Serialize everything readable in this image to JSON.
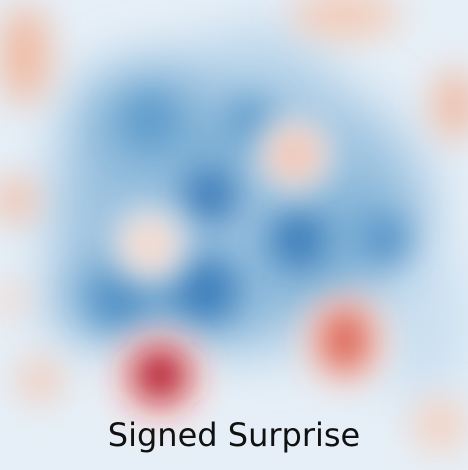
{
  "caption": "Signed Surprise"
}
